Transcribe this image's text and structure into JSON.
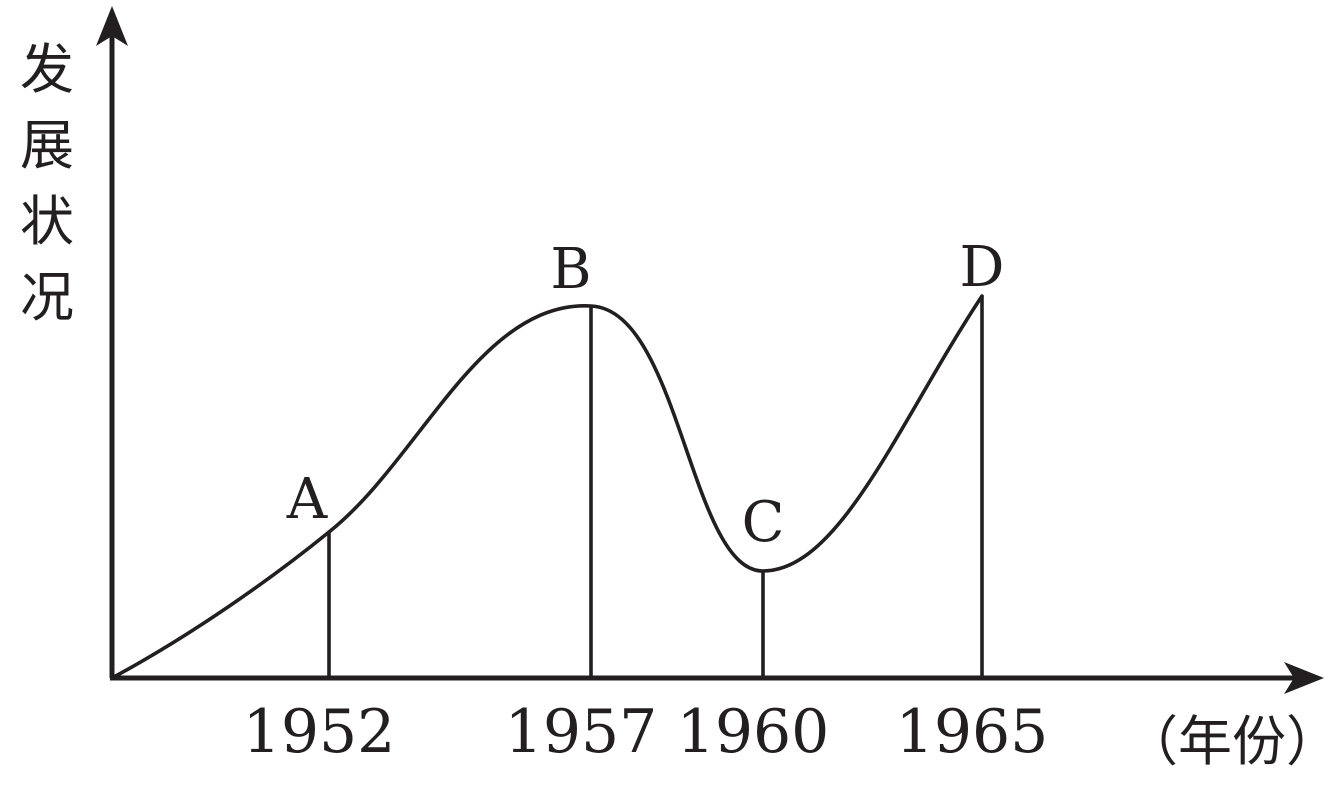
{
  "chart_data": {
    "type": "line",
    "title": "",
    "ylabel": "发展状况",
    "xlabel": "（年份）",
    "xtick_labels": [
      "1952",
      "1957",
      "1960",
      "1965"
    ],
    "points": [
      {
        "label": "A",
        "x": 1952
      },
      {
        "label": "B",
        "x": 1957
      },
      {
        "label": "C",
        "x": 1960
      },
      {
        "label": "D",
        "x": 1965
      }
    ],
    "y_values_labeled": false,
    "grid": false,
    "legend": "none"
  }
}
